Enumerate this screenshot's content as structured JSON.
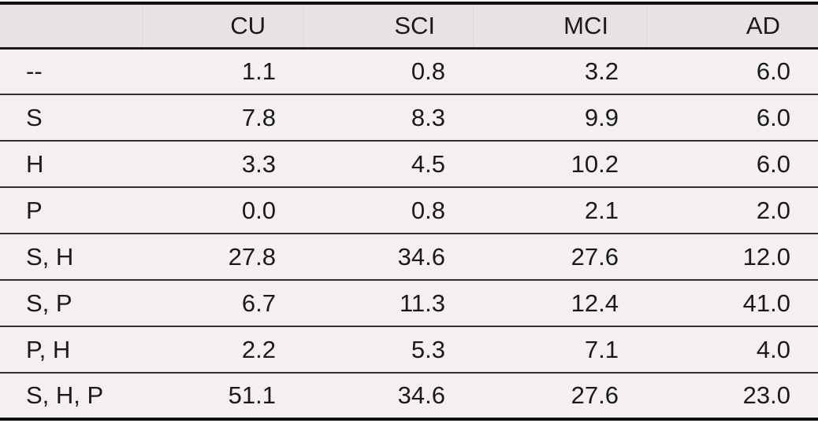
{
  "chart_data": {
    "type": "table",
    "corner_label": "",
    "columns": [
      "CU",
      "SCI",
      "MCI",
      "AD"
    ],
    "row_labels": [
      "--",
      "S",
      "H",
      "P",
      "S, H",
      "S, P",
      "P, H",
      "S, H, P"
    ],
    "rows": [
      [
        1.1,
        0.8,
        3.2,
        6.0
      ],
      [
        7.8,
        8.3,
        9.9,
        6.0
      ],
      [
        3.3,
        4.5,
        10.2,
        6.0
      ],
      [
        0.0,
        0.8,
        2.1,
        2.0
      ],
      [
        27.8,
        34.6,
        27.6,
        12.0
      ],
      [
        6.7,
        11.3,
        12.4,
        41.0
      ],
      [
        2.2,
        5.3,
        7.1,
        4.0
      ],
      [
        51.1,
        34.6,
        27.6,
        23.0
      ]
    ],
    "value_decimals": 1,
    "layout": {
      "grid": "horizontal-rules-only",
      "header_position": "top",
      "value_alignment": "right",
      "row_label_alignment": "left"
    }
  },
  "colors": {
    "header_bg": "#e6e2e6",
    "body_bg": "#f3eff3",
    "rule_heavy": "#0f0f0f",
    "rule_medium": "#1a1a1a",
    "rule_light": "#322f32",
    "text": "#1a1a1a",
    "page_bg": "#ffffff"
  }
}
